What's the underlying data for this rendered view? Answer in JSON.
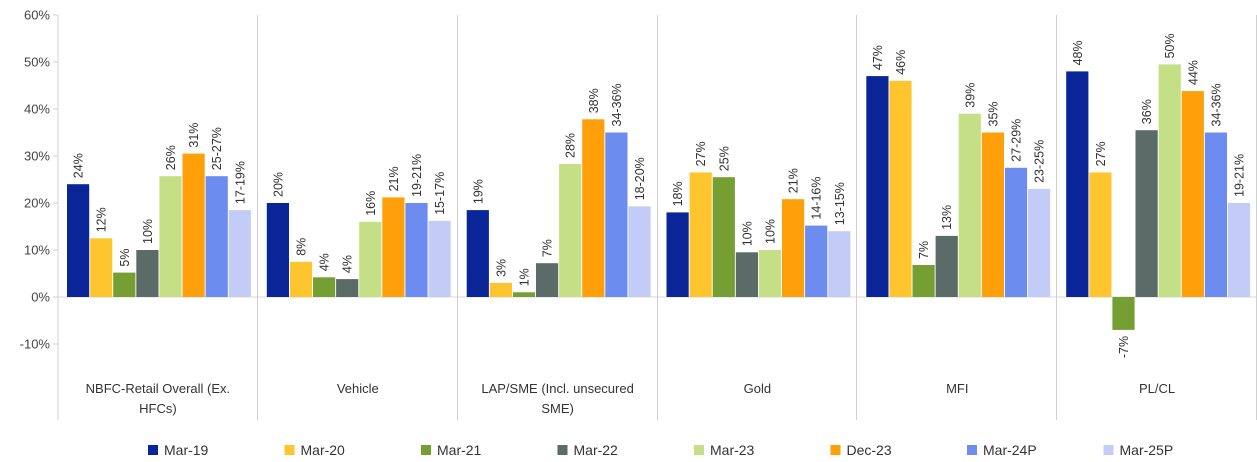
{
  "chart_data": {
    "type": "bar",
    "categories": [
      [
        "NBFC-Retail Overall (Ex.",
        "HFCs)"
      ],
      [
        "Vehicle"
      ],
      [
        "LAP/SME (Incl. unsecured",
        "SME)"
      ],
      [
        "Gold"
      ],
      [
        "MFI"
      ],
      [
        "PL/CL"
      ]
    ],
    "series": [
      {
        "name": "Mar-19",
        "color": "#0a2597",
        "values": [
          24,
          20,
          18.5,
          18,
          47,
          48
        ],
        "labels": [
          "24%",
          "20%",
          "19%",
          "18%",
          "47%",
          "48%"
        ]
      },
      {
        "name": "Mar-20",
        "color": "#ffc52f",
        "values": [
          12.5,
          7.5,
          3,
          26.5,
          46,
          26.5
        ],
        "labels": [
          "12%",
          "8%",
          "3%",
          "27%",
          "46%",
          "27%"
        ]
      },
      {
        "name": "Mar-21",
        "color": "#759e33",
        "values": [
          5.2,
          4.2,
          1,
          25.5,
          6.8,
          -7
        ],
        "labels": [
          "5%",
          "4%",
          "1%",
          "25%",
          "7%",
          "-7%"
        ]
      },
      {
        "name": "Mar-22",
        "color": "#5b6b67",
        "values": [
          10,
          3.8,
          7.2,
          9.5,
          13,
          35.5
        ],
        "labels": [
          "10%",
          "4%",
          "7%",
          "10%",
          "13%",
          "36%"
        ]
      },
      {
        "name": "Mar-23",
        "color": "#c4df85",
        "values": [
          25.7,
          16,
          28.3,
          10,
          39,
          49.5
        ],
        "labels": [
          "26%",
          "16%",
          "28%",
          "10%",
          "39%",
          "50%"
        ]
      },
      {
        "name": "Dec-23",
        "color": "#ff9f0a",
        "values": [
          30.5,
          21.2,
          37.8,
          20.8,
          35,
          43.8
        ],
        "labels": [
          "31%",
          "21%",
          "38%",
          "21%",
          "35%",
          "44%"
        ]
      },
      {
        "name": "Mar-24P",
        "color": "#6d8cf0",
        "values": [
          25.7,
          20,
          35,
          15.2,
          27.5,
          35
        ],
        "labels": [
          "25-27%",
          "19-21%",
          "34-36%",
          "14-16%",
          "27-29%",
          "34-36%"
        ]
      },
      {
        "name": "Mar-25P",
        "color": "#c3ccf6",
        "values": [
          18.5,
          16.2,
          19.3,
          14,
          23,
          20
        ],
        "labels": [
          "17-19%",
          "15-17%",
          "18-20%",
          "13-15%",
          "23-25%",
          "19-21%"
        ]
      }
    ],
    "y_ticks": [
      "60%",
      "50%",
      "40%",
      "30%",
      "20%",
      "10%",
      "0%",
      "-10%"
    ],
    "ylim": [
      -10,
      60
    ],
    "grid": false,
    "legend_position": "bottom"
  }
}
